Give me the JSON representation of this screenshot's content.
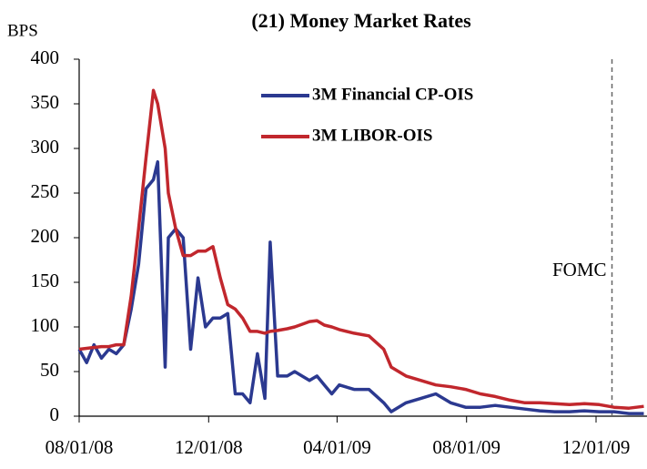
{
  "chart_data": {
    "type": "line",
    "title": "(21) Money Market Rates",
    "y_label": "BPS",
    "annotation": {
      "text": "FOMC",
      "x": "2009-12-16"
    },
    "xlim": [
      "2008-08-01",
      "2010-01-18"
    ],
    "xticks": [
      {
        "value": "2008-08-01",
        "label": "08/01/08"
      },
      {
        "value": "2008-12-01",
        "label": "12/01/08"
      },
      {
        "value": "2009-04-01",
        "label": "04/01/09"
      },
      {
        "value": "2009-08-01",
        "label": "08/01/09"
      },
      {
        "value": "2009-12-01",
        "label": "12/01/09"
      }
    ],
    "ylim": [
      0,
      400
    ],
    "yticks": [
      0,
      50,
      100,
      150,
      200,
      250,
      300,
      350,
      400
    ],
    "x": [
      "2008-08-01",
      "2008-08-08",
      "2008-08-15",
      "2008-08-22",
      "2008-08-29",
      "2008-09-05",
      "2008-09-12",
      "2008-09-19",
      "2008-09-26",
      "2008-10-03",
      "2008-10-10",
      "2008-10-14",
      "2008-10-21",
      "2008-10-24",
      "2008-10-31",
      "2008-11-07",
      "2008-11-14",
      "2008-11-21",
      "2008-11-28",
      "2008-12-05",
      "2008-12-12",
      "2008-12-19",
      "2008-12-26",
      "2009-01-02",
      "2009-01-09",
      "2009-01-16",
      "2009-01-23",
      "2009-01-28",
      "2009-02-04",
      "2009-02-13",
      "2009-02-20",
      "2009-02-27",
      "2009-03-06",
      "2009-03-13",
      "2009-03-20",
      "2009-03-27",
      "2009-04-03",
      "2009-04-17",
      "2009-05-01",
      "2009-05-15",
      "2009-05-22",
      "2009-06-05",
      "2009-06-19",
      "2009-07-03",
      "2009-07-17",
      "2009-07-31",
      "2009-08-14",
      "2009-08-28",
      "2009-09-11",
      "2009-09-25",
      "2009-10-09",
      "2009-10-23",
      "2009-11-06",
      "2009-11-20",
      "2009-12-04",
      "2009-12-18",
      "2010-01-01",
      "2010-01-15"
    ],
    "series": [
      {
        "name": "3M Financial CP-OIS",
        "color": "#2b3990",
        "values": [
          75,
          60,
          80,
          65,
          75,
          70,
          80,
          120,
          170,
          255,
          265,
          285,
          55,
          200,
          210,
          200,
          75,
          155,
          100,
          110,
          110,
          115,
          25,
          25,
          15,
          70,
          20,
          195,
          45,
          45,
          50,
          45,
          40,
          45,
          35,
          25,
          35,
          30,
          30,
          15,
          5,
          15,
          20,
          25,
          15,
          10,
          10,
          12,
          10,
          8,
          6,
          5,
          5,
          6,
          5,
          5,
          3,
          3
        ]
      },
      {
        "name": "3M LIBOR-OIS",
        "color": "#c1272d",
        "values": [
          75,
          76,
          77,
          78,
          78,
          80,
          80,
          135,
          210,
          290,
          365,
          350,
          300,
          250,
          210,
          180,
          180,
          185,
          185,
          190,
          155,
          125,
          120,
          110,
          95,
          95,
          93,
          95,
          96,
          98,
          100,
          103,
          106,
          107,
          102,
          100,
          97,
          93,
          90,
          75,
          55,
          45,
          40,
          35,
          33,
          30,
          25,
          22,
          18,
          15,
          15,
          14,
          13,
          14,
          13,
          10,
          9,
          11
        ]
      }
    ]
  }
}
